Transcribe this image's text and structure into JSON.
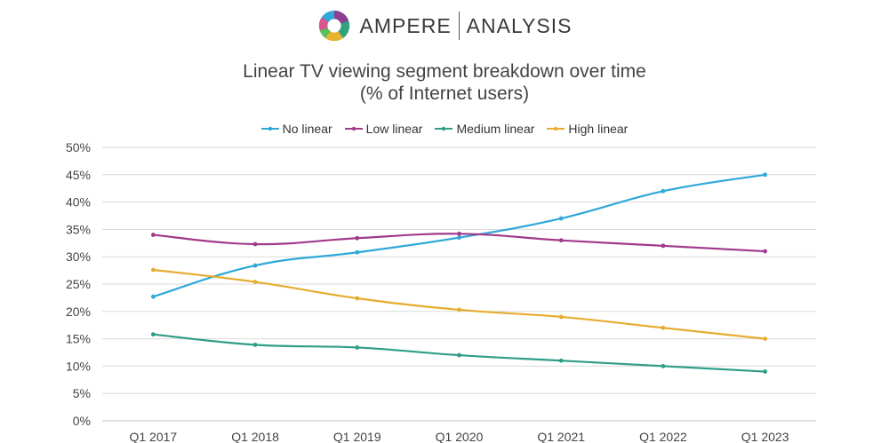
{
  "brand": {
    "name_left": "AMPERE",
    "name_right": "ANALYSIS",
    "logo_colors": [
      "#2ea8d8",
      "#8e3e8f",
      "#2ea37e",
      "#e8b32e",
      "#5bbf5a",
      "#d9568a"
    ]
  },
  "chart_data": {
    "type": "line",
    "title_line1": "Linear TV viewing segment breakdown over time",
    "title_line2": "(% of Internet users)",
    "categories": [
      "Q1 2017",
      "Q1 2018",
      "Q1 2019",
      "Q1 2020",
      "Q1 2021",
      "Q1 2022",
      "Q1 2023"
    ],
    "y_ticks": [
      "0%",
      "5%",
      "10%",
      "15%",
      "20%",
      "25%",
      "30%",
      "35%",
      "40%",
      "45%",
      "50%"
    ],
    "ylim": [
      0,
      50
    ],
    "grid": true,
    "legend_position": "top-center",
    "series": [
      {
        "name": "No linear",
        "color": "#2ea8d8",
        "values": [
          22.7,
          28.4,
          30.8,
          33.5,
          37,
          42,
          45
        ]
      },
      {
        "name": "Low linear",
        "color": "#a03a8c",
        "values": [
          34,
          32.3,
          33.4,
          34.2,
          33,
          32,
          31
        ]
      },
      {
        "name": "Medium linear",
        "color": "#2f9d87",
        "values": [
          15.8,
          13.9,
          13.4,
          12,
          11,
          10,
          9
        ]
      },
      {
        "name": "High linear",
        "color": "#e6ac2e",
        "values": [
          27.6,
          25.4,
          22.4,
          20.3,
          19,
          17,
          15
        ]
      }
    ]
  }
}
